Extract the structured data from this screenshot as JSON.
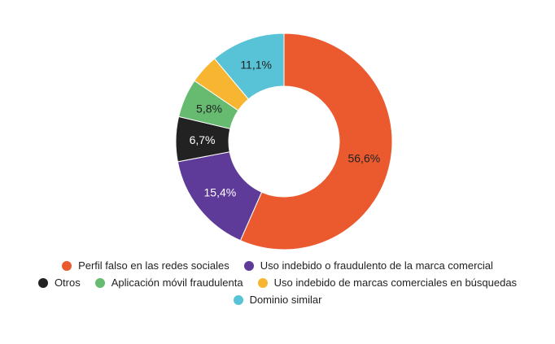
{
  "chart_data": {
    "type": "pie",
    "donut": true,
    "start_angle_deg": 0,
    "direction": "clockwise",
    "legend_position": "bottom",
    "slices": [
      {
        "label": "Perfil falso en las redes sociales",
        "value": 56.6,
        "display": "56,6%",
        "color": "#EB5A2E",
        "text_color": "#222222"
      },
      {
        "label": "Uso indebido o fraudulento de la marca comercial",
        "value": 15.4,
        "display": "15,4%",
        "color": "#5E3B99",
        "text_color": "#ffffff"
      },
      {
        "label": "Otros",
        "value": 6.7,
        "display": "6,7%",
        "color": "#222222",
        "text_color": "#ffffff"
      },
      {
        "label": "Aplicación móvil fraudulenta",
        "value": 5.8,
        "display": "5,8%",
        "color": "#66BB70",
        "text_color": "#222222"
      },
      {
        "label": "Uso indebido de marcas comerciales en búsquedas",
        "value": 4.4,
        "display": "",
        "color": "#F8B531",
        "text_color": "#222222"
      },
      {
        "label": "Dominio similar",
        "value": 11.1,
        "display": "11,1%",
        "color": "#58C3D6",
        "text_color": "#222222"
      }
    ]
  }
}
